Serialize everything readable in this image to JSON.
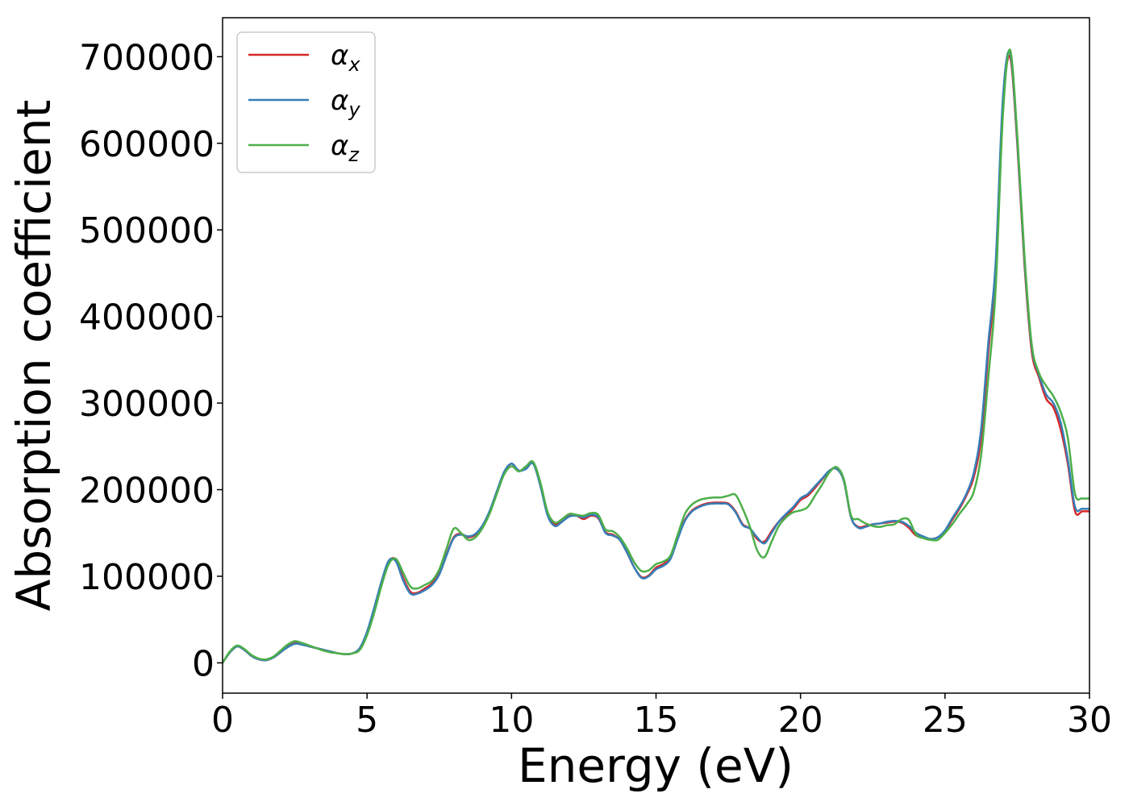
{
  "chart_data": {
    "type": "line",
    "title": "",
    "xlabel": "Energy (eV)",
    "ylabel": "Absorption coefficient",
    "xlim": [
      0,
      30
    ],
    "ylim": [
      -35000,
      745000
    ],
    "x_ticks": [
      0,
      5,
      10,
      15,
      20,
      25,
      30
    ],
    "y_ticks": [
      0,
      100000,
      200000,
      300000,
      400000,
      500000,
      600000,
      700000
    ],
    "grid": false,
    "legend_position": "top-left",
    "x": [
      0.0,
      0.25,
      0.5,
      0.75,
      1.0,
      1.25,
      1.5,
      1.75,
      2.0,
      2.25,
      2.5,
      2.75,
      3.0,
      3.25,
      3.5,
      3.75,
      4.0,
      4.25,
      4.5,
      4.75,
      5.0,
      5.25,
      5.5,
      5.75,
      6.0,
      6.25,
      6.5,
      6.75,
      7.0,
      7.25,
      7.5,
      7.75,
      8.0,
      8.25,
      8.5,
      8.75,
      9.0,
      9.25,
      9.5,
      9.75,
      10.0,
      10.25,
      10.5,
      10.75,
      11.0,
      11.25,
      11.5,
      11.75,
      12.0,
      12.25,
      12.5,
      12.75,
      13.0,
      13.25,
      13.5,
      13.75,
      14.0,
      14.25,
      14.5,
      14.75,
      15.0,
      15.25,
      15.5,
      15.75,
      16.0,
      16.25,
      16.5,
      16.75,
      17.0,
      17.25,
      17.5,
      17.75,
      18.0,
      18.25,
      18.5,
      18.75,
      19.0,
      19.25,
      19.5,
      19.75,
      20.0,
      20.25,
      20.5,
      20.75,
      21.0,
      21.25,
      21.5,
      21.75,
      22.0,
      22.25,
      22.5,
      22.75,
      23.0,
      23.25,
      23.5,
      23.75,
      24.0,
      24.25,
      24.5,
      24.75,
      25.0,
      25.25,
      25.5,
      25.75,
      26.0,
      26.25,
      26.5,
      26.75,
      27.0,
      27.25,
      27.5,
      27.75,
      28.0,
      28.25,
      28.5,
      28.75,
      29.0,
      29.25,
      29.5,
      29.75,
      30.0
    ],
    "series": [
      {
        "name": "α_x",
        "legend_main": "α",
        "legend_sub": "x",
        "color": "#d62728",
        "values": [
          0,
          12000,
          19000,
          15000,
          8000,
          4000,
          3000,
          6000,
          12000,
          19000,
          23000,
          22000,
          19000,
          17000,
          15000,
          13000,
          11000,
          10000,
          11000,
          17000,
          35000,
          62000,
          92000,
          117000,
          119000,
          98000,
          82000,
          81000,
          86000,
          92000,
          104000,
          125000,
          145000,
          149000,
          145000,
          148000,
          158000,
          175000,
          198000,
          220000,
          230000,
          222000,
          225000,
          231000,
          205000,
          172000,
          160000,
          164000,
          170000,
          170000,
          166000,
          170000,
          167000,
          151000,
          148000,
          142000,
          127000,
          110000,
          99000,
          101000,
          110000,
          114000,
          122000,
          145000,
          165000,
          176000,
          181000,
          184000,
          185000,
          185000,
          184000,
          175000,
          160000,
          155000,
          143000,
          140000,
          152000,
          163000,
          170000,
          178000,
          188000,
          193000,
          202000,
          212000,
          222000,
          224000,
          210000,
          168000,
          157000,
          158000,
          160000,
          161000,
          162000,
          163000,
          162000,
          156000,
          147000,
          145000,
          143000,
          145000,
          152000,
          165000,
          178000,
          194000,
          215000,
          260000,
          360000,
          450000,
          640000,
          700000,
          600000,
          460000,
          360000,
          330000,
          305000,
          295000,
          270000,
          230000,
          175000,
          175000,
          175000
        ]
      },
      {
        "name": "α_y",
        "legend_main": "α",
        "legend_sub": "y",
        "color": "#377eb8",
        "values": [
          0,
          12000,
          19000,
          15000,
          8000,
          4000,
          3000,
          6000,
          12000,
          18000,
          22000,
          21000,
          19000,
          17000,
          15000,
          13000,
          11000,
          10000,
          11000,
          17000,
          36000,
          64000,
          94000,
          118000,
          117000,
          95000,
          80000,
          80000,
          84000,
          90000,
          102000,
          124000,
          144000,
          148000,
          146000,
          149000,
          159000,
          176000,
          199000,
          221000,
          230000,
          222000,
          224000,
          230000,
          204000,
          170000,
          158000,
          163000,
          169000,
          170000,
          168000,
          171000,
          168000,
          150000,
          147000,
          142000,
          127000,
          110000,
          98000,
          100000,
          108000,
          112000,
          120000,
          143000,
          164000,
          175000,
          180000,
          183000,
          184000,
          184000,
          183000,
          174000,
          159000,
          155000,
          145000,
          138000,
          150000,
          163000,
          172000,
          180000,
          190000,
          195000,
          204000,
          213000,
          222000,
          224000,
          210000,
          168000,
          156000,
          157000,
          160000,
          161000,
          163000,
          164000,
          163000,
          158000,
          150000,
          146000,
          143000,
          145000,
          153000,
          167000,
          180000,
          196000,
          220000,
          270000,
          370000,
          460000,
          650000,
          705000,
          605000,
          465000,
          365000,
          333000,
          310000,
          300000,
          278000,
          235000,
          180000,
          178000,
          178000
        ]
      },
      {
        "name": "α_z",
        "legend_main": "α",
        "legend_sub": "z",
        "color": "#4daf4a",
        "values": [
          0,
          13000,
          20000,
          16000,
          9000,
          5000,
          4000,
          7000,
          14000,
          21000,
          25000,
          23000,
          20000,
          17000,
          14000,
          12000,
          11000,
          10000,
          11000,
          15000,
          32000,
          58000,
          89000,
          114000,
          120000,
          104000,
          88000,
          86000,
          90000,
          95000,
          108000,
          132000,
          155000,
          150000,
          142000,
          145000,
          156000,
          173000,
          196000,
          218000,
          227000,
          221000,
          227000,
          232000,
          208000,
          174000,
          162000,
          166000,
          172000,
          171000,
          170000,
          173000,
          171000,
          154000,
          152000,
          145000,
          132000,
          116000,
          106000,
          107000,
          114000,
          117000,
          124000,
          148000,
          172000,
          183000,
          188000,
          190000,
          191000,
          191000,
          193000,
          194000,
          178000,
          157000,
          130000,
          122000,
          140000,
          158000,
          168000,
          174000,
          176000,
          180000,
          193000,
          206000,
          220000,
          226000,
          212000,
          170000,
          166000,
          161000,
          158000,
          157000,
          159000,
          160000,
          166000,
          165000,
          148000,
          144000,
          142000,
          142000,
          150000,
          160000,
          172000,
          183000,
          198000,
          240000,
          330000,
          430000,
          630000,
          708000,
          610000,
          470000,
          368000,
          335000,
          320000,
          308000,
          290000,
          260000,
          195000,
          190000,
          190000
        ]
      }
    ]
  }
}
